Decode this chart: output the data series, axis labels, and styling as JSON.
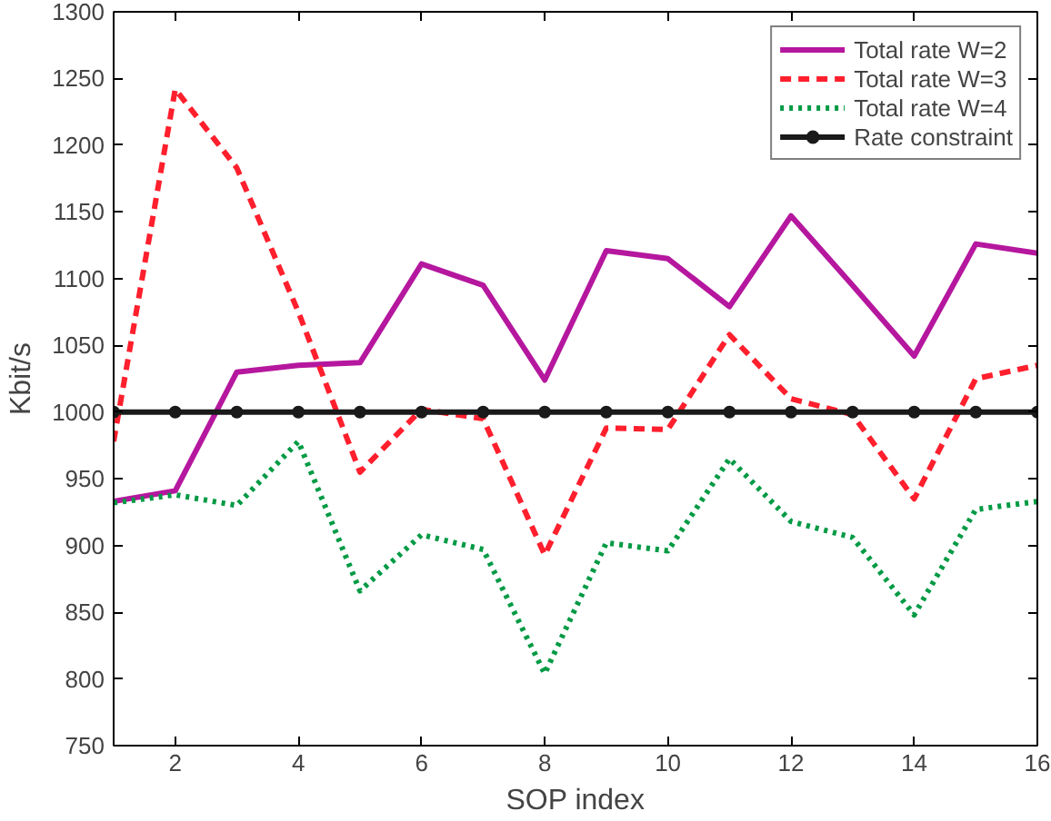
{
  "chart_data": {
    "type": "line",
    "xlabel": "SOP index",
    "ylabel": "Kbit/s",
    "x": [
      1,
      2,
      3,
      4,
      5,
      6,
      7,
      8,
      9,
      10,
      11,
      12,
      13,
      14,
      15,
      16
    ],
    "series": [
      {
        "name": "Total rate W=2",
        "color": "#b5179e",
        "line_style": "solid",
        "values": [
          933,
          941,
          1030,
          1035,
          1037,
          1111,
          1095,
          1024,
          1121,
          1115,
          1079,
          1147,
          1095,
          1042,
          1126,
          1119
        ]
      },
      {
        "name": "Total rate W=3",
        "color": "#ff1f2d",
        "line_style": "dashed",
        "values": [
          978,
          1242,
          1183,
          1075,
          955,
          1002,
          995,
          893,
          988,
          987,
          1058,
          1010,
          998,
          935,
          1025,
          1035
        ]
      },
      {
        "name": "Total rate W=4",
        "color": "#009a44",
        "line_style": "dotted",
        "values": [
          932,
          938,
          930,
          978,
          866,
          908,
          897,
          804,
          902,
          896,
          965,
          918,
          906,
          848,
          927,
          933
        ]
      },
      {
        "name": "Rate constraint",
        "color": "#1a1a1a",
        "line_style": "solid",
        "marker": "circle",
        "values": [
          1000,
          1000,
          1000,
          1000,
          1000,
          1000,
          1000,
          1000,
          1000,
          1000,
          1000,
          1000,
          1000,
          1000,
          1000,
          1000
        ]
      }
    ],
    "xlim": [
      1,
      16
    ],
    "xticks": [
      2,
      4,
      6,
      8,
      10,
      12,
      14,
      16
    ],
    "ylim": [
      750,
      1300
    ],
    "yticks": [
      750,
      800,
      850,
      900,
      950,
      1000,
      1050,
      1100,
      1150,
      1200,
      1250,
      1300
    ],
    "grid": false,
    "legend": "top right"
  }
}
